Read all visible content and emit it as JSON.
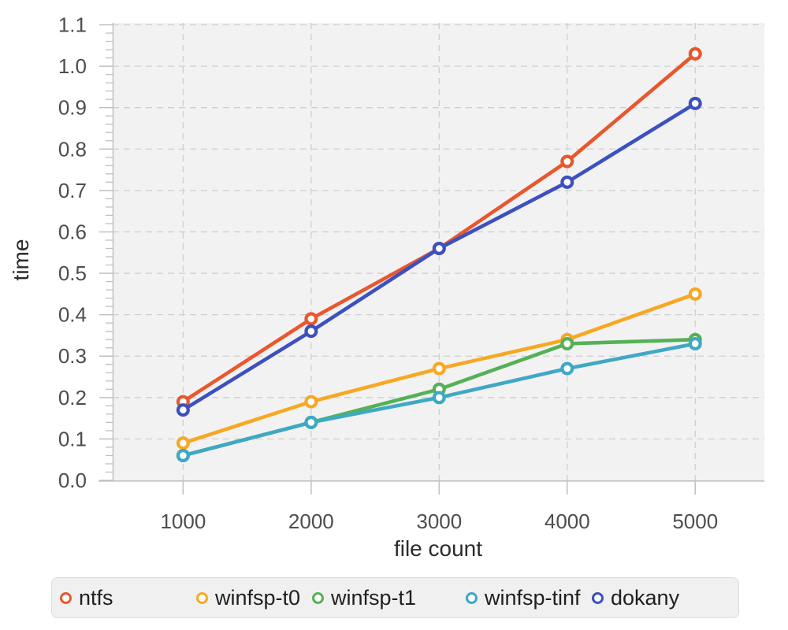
{
  "chart_data": {
    "type": "line",
    "title": "",
    "xlabel": "file count",
    "ylabel": "time",
    "x": [
      1000,
      2000,
      3000,
      4000,
      5000
    ],
    "x_tick_labels": [
      "1000",
      "2000",
      "3000",
      "4000",
      "5000"
    ],
    "y_ticks": [
      0.0,
      0.1,
      0.2,
      0.3,
      0.4,
      0.5,
      0.6,
      0.7,
      0.8,
      0.9,
      1.0,
      1.1
    ],
    "y_tick_labels": [
      "0.0",
      "0.1",
      "0.2",
      "0.3",
      "0.4",
      "0.5",
      "0.6",
      "0.7",
      "0.8",
      "0.9",
      "1.0",
      "1.1"
    ],
    "xlim": [
      450,
      5540
    ],
    "ylim": [
      0,
      1.1
    ],
    "y_minor_step": 0.02,
    "grid": true,
    "legend_position": "bottom",
    "series": [
      {
        "name": "ntfs",
        "color": "#E8572D",
        "values": [
          0.19,
          0.39,
          0.56,
          0.77,
          1.03
        ]
      },
      {
        "name": "winfsp-t0",
        "color": "#F7A823",
        "values": [
          0.09,
          0.19,
          0.27,
          0.34,
          0.45
        ]
      },
      {
        "name": "winfsp-t1",
        "color": "#55B156",
        "values": [
          0.06,
          0.14,
          0.22,
          0.33,
          0.34
        ]
      },
      {
        "name": "winfsp-tinf",
        "color": "#3FA8C4",
        "values": [
          0.06,
          0.14,
          0.2,
          0.27,
          0.33
        ]
      },
      {
        "name": "dokany",
        "color": "#3C50C0",
        "values": [
          0.17,
          0.36,
          0.56,
          0.72,
          0.91
        ]
      }
    ]
  },
  "style_colors": {
    "plot_background": "#f2f2f3",
    "gridline": "#cfcfcf",
    "axis_line": "#c0c0c0",
    "tick_label": "#4d4d4d",
    "axis_title": "#2b2b2b"
  },
  "legend_item_offsets": [
    10,
    183,
    330,
    525,
    685
  ]
}
